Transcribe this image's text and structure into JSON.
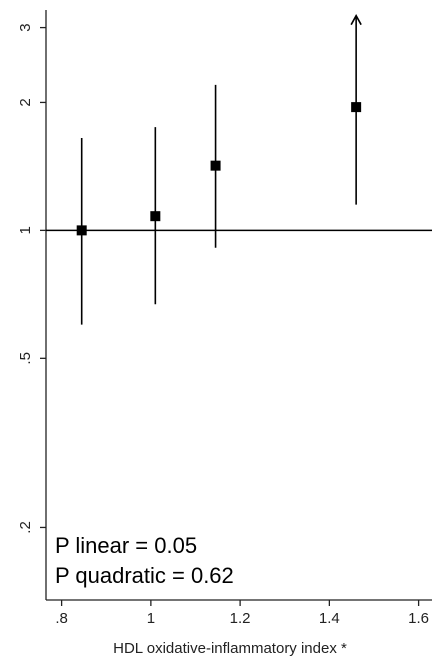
{
  "chart_data": {
    "type": "scatter",
    "title": "",
    "xlabel": "HDL oxidative-inflammatory index *",
    "ylabel": "",
    "x_ticks": [
      {
        "value": 0.8,
        "label": ".8"
      },
      {
        "value": 1.0,
        "label": "1"
      },
      {
        "value": 1.2,
        "label": "1.2"
      },
      {
        "value": 1.4,
        "label": "1.4"
      },
      {
        "value": 1.6,
        "label": "1.6"
      }
    ],
    "y_ticks": [
      {
        "value": 0.2,
        "label": ".2"
      },
      {
        "value": 0.5,
        "label": ".5"
      },
      {
        "value": 1,
        "label": "1"
      },
      {
        "value": 2,
        "label": "2"
      },
      {
        "value": 3,
        "label": "3"
      }
    ],
    "xlim": [
      0.765,
      1.63
    ],
    "ylim": [
      0.135,
      3.3
    ],
    "y_scale": "log",
    "reference_line_y": 1,
    "grid": false,
    "points": [
      {
        "x": 0.845,
        "y": 1.0,
        "lower": 0.6,
        "upper": 1.65,
        "upper_arrow": false
      },
      {
        "x": 1.01,
        "y": 1.08,
        "lower": 0.67,
        "upper": 1.75,
        "upper_arrow": false
      },
      {
        "x": 1.145,
        "y": 1.42,
        "lower": 0.91,
        "upper": 2.2,
        "upper_arrow": false
      },
      {
        "x": 1.46,
        "y": 1.95,
        "lower": 1.15,
        "upper": 3.2,
        "upper_arrow": true
      }
    ],
    "annotations": [
      {
        "label": "P linear = 0.05"
      },
      {
        "label": "P quadratic = 0.62"
      }
    ],
    "colors": {
      "marker": "#000000",
      "line": "#000000",
      "axis": "#222222"
    }
  }
}
